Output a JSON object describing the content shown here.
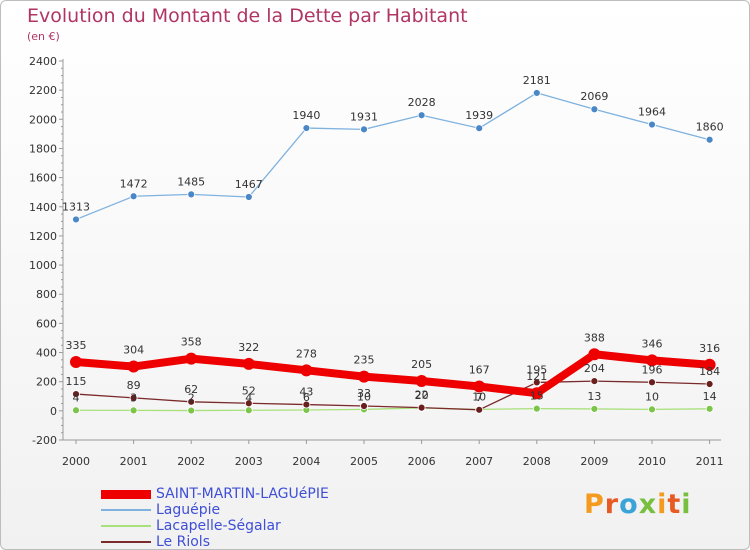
{
  "chart_data": {
    "type": "line",
    "title": "Evolution du Montant de la Dette par Habitant",
    "subtitle": "(en €)",
    "xlabel": "",
    "ylabel": "",
    "ylim": [
      -200,
      2400
    ],
    "y_ticks": [
      -200,
      0,
      200,
      400,
      600,
      800,
      1000,
      1200,
      1400,
      1600,
      1800,
      2000,
      2200,
      2400
    ],
    "grid": false,
    "legend_position": "bottom-left",
    "categories": [
      "2000",
      "2001",
      "2002",
      "2003",
      "2004",
      "2005",
      "2006",
      "2007",
      "2008",
      "2009",
      "2010",
      "2011"
    ],
    "series": [
      {
        "name": "SAINT-MARTIN-LAGUéPIE",
        "color": "#ee0000",
        "marker_color": "#ee0000",
        "emphasis": "thick",
        "values": [
          335,
          304,
          358,
          322,
          278,
          235,
          205,
          167,
          121,
          388,
          346,
          316
        ],
        "labels": [
          "335",
          "304",
          "358",
          "322",
          "278",
          "235",
          "205",
          "167",
          "121",
          "388",
          "346",
          "316"
        ]
      },
      {
        "name": "Laguépie",
        "color": "#7fb2df",
        "marker_color": "#4a87c7",
        "emphasis": "normal",
        "values": [
          1313,
          1472,
          1485,
          1467,
          1940,
          1931,
          2028,
          1939,
          2181,
          2069,
          1964,
          1860
        ],
        "labels": [
          "1313",
          "1472",
          "1485",
          "1467",
          "1940",
          "1931",
          "2028",
          "1939",
          "2181",
          "2069",
          "1964",
          "1860"
        ]
      },
      {
        "name": "Lacapelle-Ségalar",
        "color": "#a8e07a",
        "marker_color": "#7cc44a",
        "emphasis": "normal",
        "values": [
          4,
          3,
          2,
          4,
          6,
          10,
          20,
          10,
          15,
          13,
          10,
          14
        ],
        "labels": [
          "4",
          "3",
          "2",
          "4",
          "6",
          "10",
          "20",
          "10",
          "15",
          "13",
          "10",
          "14"
        ]
      },
      {
        "name": "Le Riols",
        "color": "#7a2a2a",
        "marker_color": "#6a1f1f",
        "emphasis": "normal",
        "values": [
          115,
          89,
          62,
          52,
          43,
          33,
          22,
          7,
          195,
          204,
          196,
          184
        ],
        "labels": [
          "115",
          "89",
          "62",
          "52",
          "43",
          "33",
          "22",
          "7",
          "195",
          "204",
          "196",
          "184"
        ]
      }
    ]
  },
  "brand": {
    "letters": [
      "P",
      "r",
      "o",
      "x",
      "i",
      "t",
      "i"
    ],
    "colors": [
      "#f39a1f",
      "#e85a23",
      "#3aa3d8",
      "#78bf3f",
      "#f39a1f",
      "#e85a23",
      "#78bf3f"
    ]
  }
}
